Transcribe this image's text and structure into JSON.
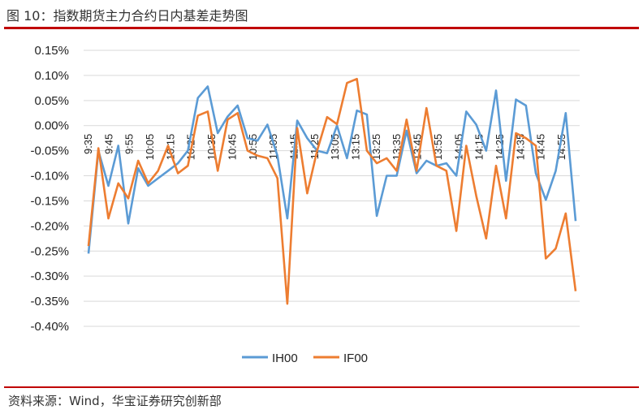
{
  "figure": {
    "title": "图 10：指数期货主力合约日内基差走势图",
    "source": "资料来源：Wind，华宝证券研究创新部"
  },
  "colors": {
    "IH00": "#5b9bd5",
    "IF00": "#ed7d31",
    "rule": "#c00000",
    "grid": "#d9d9d9"
  },
  "chart_data": {
    "type": "line",
    "ylim": [
      -0.4,
      0.15
    ],
    "y_ticks": [
      "0.15%",
      "0.10%",
      "0.05%",
      "0.00%",
      "-0.05%",
      "-0.10%",
      "-0.15%",
      "-0.20%",
      "-0.25%",
      "-0.30%",
      "-0.35%",
      "-0.40%"
    ],
    "y_tick_values": [
      0.15,
      0.1,
      0.05,
      0.0,
      -0.05,
      -0.1,
      -0.15,
      -0.2,
      -0.25,
      -0.3,
      -0.35,
      -0.4
    ],
    "x_labels": [
      "9:35",
      "9:45",
      "9:55",
      "10:05",
      "10:15",
      "10:25",
      "10:35",
      "10:45",
      "10:55",
      "11:05",
      "11:15",
      "11:25",
      "13:05",
      "13:15",
      "13:25",
      "13:35",
      "13:45",
      "13:55",
      "14:05",
      "14:15",
      "14:25",
      "14:35",
      "14:45",
      "14:55"
    ],
    "legend_position": "bottom",
    "grid": true,
    "series": [
      {
        "name": "IH00",
        "values": [
          -0.255,
          -0.05,
          -0.12,
          -0.04,
          -0.195,
          -0.085,
          -0.12,
          -0.105,
          -0.09,
          -0.075,
          -0.05,
          0.055,
          0.078,
          -0.015,
          0.018,
          0.04,
          -0.025,
          -0.03,
          0.002,
          -0.06,
          -0.185,
          0.01,
          -0.025,
          -0.05,
          -0.055,
          0.0,
          -0.065,
          0.03,
          0.022,
          -0.18,
          -0.1,
          -0.1,
          -0.01,
          -0.095,
          -0.07,
          -0.08,
          -0.075,
          -0.1,
          0.028,
          0.002,
          -0.05,
          0.07,
          -0.11,
          0.052,
          0.04,
          -0.095,
          -0.148,
          -0.09,
          0.025,
          -0.19
        ]
      },
      {
        "name": "IF00",
        "values": [
          -0.24,
          -0.045,
          -0.185,
          -0.115,
          -0.145,
          -0.07,
          -0.115,
          -0.09,
          -0.04,
          -0.095,
          -0.08,
          0.02,
          0.028,
          -0.09,
          0.012,
          0.025,
          -0.05,
          -0.06,
          -0.065,
          -0.105,
          -0.355,
          -0.005,
          -0.135,
          -0.05,
          0.017,
          0.003,
          0.085,
          0.093,
          -0.05,
          -0.075,
          -0.065,
          -0.09,
          0.012,
          -0.09,
          0.035,
          -0.08,
          -0.09,
          -0.21,
          -0.04,
          -0.14,
          -0.225,
          -0.08,
          -0.185,
          -0.015,
          -0.025,
          -0.04,
          -0.265,
          -0.245,
          -0.175,
          -0.33
        ]
      }
    ]
  }
}
